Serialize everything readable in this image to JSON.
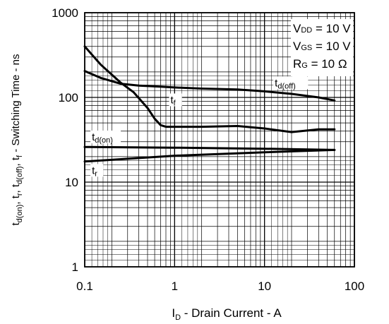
{
  "chart_data": {
    "type": "line",
    "title": "",
    "xlabel": {
      "main": "I",
      "sub": "D",
      "rest": " - Drain Current - A"
    },
    "ylabel": [
      {
        "t": "t",
        "sub": false
      },
      {
        "t": "d(on)",
        "sub": true
      },
      {
        "t": ", t",
        "sub": false
      },
      {
        "t": "r",
        "sub": true
      },
      {
        "t": ", t",
        "sub": false
      },
      {
        "t": "d(off)",
        "sub": true
      },
      {
        "t": ", t",
        "sub": false
      },
      {
        "t": "f",
        "sub": true
      },
      {
        "t": " - Switching Time - ns",
        "sub": false
      }
    ],
    "xscale": "log",
    "yscale": "log",
    "xlim": [
      0.1,
      100
    ],
    "ylim": [
      1,
      1000
    ],
    "grid": true,
    "x_ticks": [
      0.1,
      1,
      10,
      100
    ],
    "x_tick_labels": [
      "0.1",
      "1",
      "10",
      "100"
    ],
    "y_ticks": [
      1,
      10,
      100,
      1000
    ],
    "y_tick_labels": [
      "1",
      "10",
      "100",
      "1000"
    ],
    "conditions": [
      {
        "main": "V",
        "sub": "DD",
        "rest": " = 10 V"
      },
      {
        "main": "V",
        "sub": "GS",
        "rest": " = 10 V"
      },
      {
        "main": "R",
        "sub": "G",
        "rest": " = 10 Ω"
      }
    ],
    "series": [
      {
        "label_main": "t",
        "label_sub": "d(off)",
        "label_at": [
          13,
          135
        ],
        "x": [
          0.1,
          0.15,
          0.25,
          0.4,
          0.7,
          1,
          2,
          5,
          10,
          20,
          40,
          60
        ],
        "y": [
          205,
          170,
          145,
          138,
          134,
          131,
          127,
          124,
          118,
          110,
          100,
          92
        ]
      },
      {
        "label_main": "t",
        "label_sub": "f",
        "label_at": [
          0.9,
          85
        ],
        "x": [
          0.1,
          0.15,
          0.25,
          0.35,
          0.5,
          0.6,
          0.7,
          0.8,
          1,
          2,
          5,
          10,
          20,
          40,
          60
        ],
        "y": [
          400,
          245,
          150,
          115,
          75,
          56,
          47,
          45,
          45,
          45,
          46,
          43,
          39,
          42,
          42
        ]
      },
      {
        "label_main": "t",
        "label_sub": "d(on)",
        "label_at": [
          0.12,
          31
        ],
        "x": [
          0.1,
          1,
          10,
          60
        ],
        "y": [
          26,
          25.5,
          24.8,
          24
        ]
      },
      {
        "label_main": "t",
        "label_sub": "r",
        "label_at": [
          0.12,
          12.5
        ],
        "x": [
          0.1,
          1,
          10,
          60
        ],
        "y": [
          17.5,
          20.5,
          22.5,
          24
        ]
      }
    ]
  }
}
